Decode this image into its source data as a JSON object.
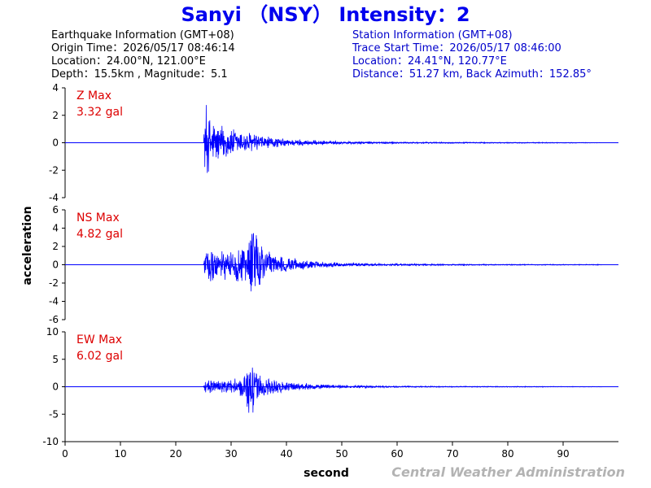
{
  "title": "Sanyi （NSY） Intensity：2",
  "earthquake_info": {
    "heading": "Earthquake Information  (GMT+08)",
    "origin_time": "Origin Time：2026/05/17 08:46:14",
    "location": "Location：24.00°N, 121.00°E",
    "depth_magnitude": "Depth：15.5km , Magnitude：5.1"
  },
  "station_info": {
    "heading": "Station Information  (GMT+08)",
    "trace_start": "Trace Start Time：2026/05/17 08:46:00",
    "location": "Location：24.41°N, 120.77°E",
    "distance": "Distance：51.27 km, Back Azimuth：152.85°"
  },
  "footer": "Central Weather Administration",
  "colors": {
    "trace": "#0000ff",
    "title": "#0000ee",
    "station_info": "#0000cc",
    "max_label": "#dd0000",
    "footer": "#b3b3b3"
  },
  "chart_data": {
    "type": "line",
    "xlabel": "second",
    "ylabel": "acceleration",
    "xlim": [
      0,
      100
    ],
    "xticks": [
      0,
      10,
      20,
      30,
      40,
      50,
      60,
      70,
      80,
      90
    ],
    "grid": false,
    "panels": [
      {
        "component": "Z",
        "max_label": "Z Max",
        "max_value": "3.32 gal",
        "ylim": [
          -4,
          4
        ],
        "yticks": [
          -4,
          -2,
          0,
          2,
          4
        ],
        "envelope": [
          [
            25.0,
            0.0
          ],
          [
            25.1,
            1.5
          ],
          [
            25.5,
            3.32
          ],
          [
            26,
            2.2
          ],
          [
            27,
            1.8
          ],
          [
            28,
            1.5
          ],
          [
            30,
            1.2
          ],
          [
            32,
            0.95
          ],
          [
            34,
            0.8
          ],
          [
            36,
            0.55
          ],
          [
            38,
            0.4
          ],
          [
            40,
            0.3
          ],
          [
            45,
            0.2
          ],
          [
            50,
            0.12
          ],
          [
            60,
            0.07
          ],
          [
            70,
            0.05
          ],
          [
            80,
            0.04
          ],
          [
            90,
            0.03
          ],
          [
            97,
            0.02
          ]
        ]
      },
      {
        "component": "NS",
        "max_label": "NS Max",
        "max_value": "4.82 gal",
        "ylim": [
          -6,
          6
        ],
        "yticks": [
          -6,
          -4,
          -2,
          0,
          2,
          4,
          6
        ],
        "envelope": [
          [
            25.0,
            0.0
          ],
          [
            25.3,
            1.5
          ],
          [
            26,
            2.5
          ],
          [
            27,
            2.0
          ],
          [
            28,
            1.8
          ],
          [
            30,
            1.5
          ],
          [
            32,
            2.5
          ],
          [
            33.2,
            3.0
          ],
          [
            34,
            4.82
          ],
          [
            35,
            2.8
          ],
          [
            36,
            1.8
          ],
          [
            38,
            1.2
          ],
          [
            40,
            0.8
          ],
          [
            45,
            0.4
          ],
          [
            50,
            0.25
          ],
          [
            60,
            0.12
          ],
          [
            70,
            0.08
          ],
          [
            80,
            0.06
          ],
          [
            90,
            0.05
          ],
          [
            97,
            0.04
          ]
        ]
      },
      {
        "component": "EW",
        "max_label": "EW Max",
        "max_value": "6.02 gal",
        "ylim": [
          -10,
          10
        ],
        "yticks": [
          -10,
          -5,
          0,
          5,
          10
        ],
        "envelope": [
          [
            25.0,
            0.0
          ],
          [
            25.3,
            1.3
          ],
          [
            26,
            1.5
          ],
          [
            28,
            1.2
          ],
          [
            30,
            1.5
          ],
          [
            31.5,
            2.0
          ],
          [
            32.5,
            3.5
          ],
          [
            33.5,
            6.02
          ],
          [
            34.5,
            4.0
          ],
          [
            35.5,
            2.5
          ],
          [
            37,
            1.5
          ],
          [
            40,
            1.0
          ],
          [
            45,
            0.5
          ],
          [
            50,
            0.3
          ],
          [
            60,
            0.15
          ],
          [
            70,
            0.1
          ],
          [
            80,
            0.08
          ],
          [
            90,
            0.06
          ],
          [
            97,
            0.05
          ]
        ]
      }
    ]
  }
}
